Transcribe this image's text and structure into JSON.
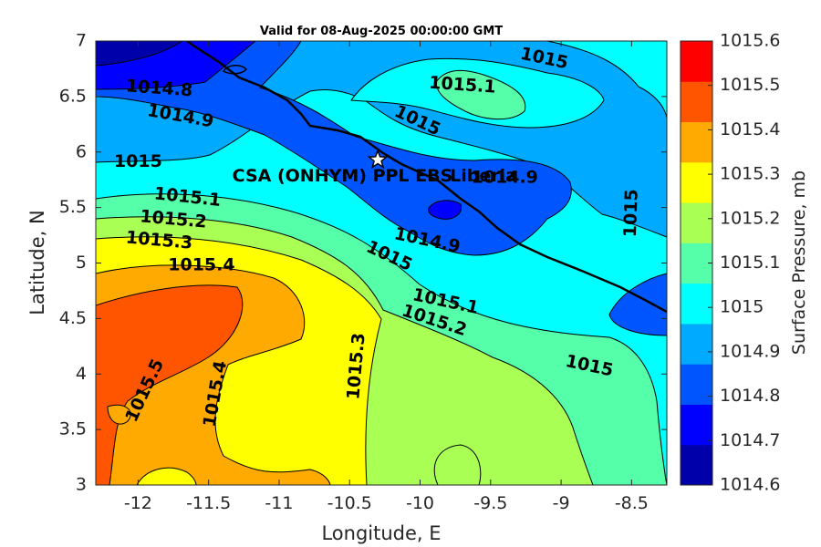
{
  "chart_data": {
    "type": "contour",
    "title": "Valid for 08-Aug-2025 00:00:00 GMT",
    "xlabel": "Longitude, E",
    "ylabel": "Latitude, N",
    "xlim": [
      -12.3,
      -8.25
    ],
    "ylim": [
      3,
      7
    ],
    "xticks": [
      "-12",
      "-11.5",
      "-11",
      "-10.5",
      "-10",
      "-9.5",
      "-9",
      "-8.5"
    ],
    "yticks": [
      "3",
      "3.5",
      "4",
      "4.5",
      "5",
      "5.5",
      "6",
      "6.5",
      "7"
    ],
    "colorbar": {
      "label": "Surface Pressure, mb",
      "ticks": [
        "1014.6",
        "1014.7",
        "1014.8",
        "1014.9",
        "1015",
        "1015.1",
        "1015.2",
        "1015.3",
        "1015.4",
        "1015.5",
        "1015.6"
      ],
      "colors": [
        "#0000aa",
        "#0000ff",
        "#0055ff",
        "#00aaff",
        "#00ffff",
        "#55ffaa",
        "#aaff55",
        "#ffff00",
        "#ffaa00",
        "#ff5500",
        "#ff0000"
      ]
    },
    "contour_labels": [
      {
        "text": "1015",
        "lon": -9.12,
        "lat": 6.84
      },
      {
        "text": "1015.1",
        "lon": -9.7,
        "lat": 6.6
      },
      {
        "text": "1014.8",
        "lon": -11.85,
        "lat": 6.57
      },
      {
        "text": "1014.9",
        "lon": -11.7,
        "lat": 6.32
      },
      {
        "text": "1015",
        "lon": -10.02,
        "lat": 6.28
      },
      {
        "text": "1015",
        "lon": -12.0,
        "lat": 5.91
      },
      {
        "text": "1014.9",
        "lon": -9.4,
        "lat": 5.77
      },
      {
        "text": "1015.1",
        "lon": -11.65,
        "lat": 5.59
      },
      {
        "text": "1015",
        "lon": -8.5,
        "lat": 5.45
      },
      {
        "text": "1015.2",
        "lon": -11.75,
        "lat": 5.39
      },
      {
        "text": "1014.9",
        "lon": -9.95,
        "lat": 5.2
      },
      {
        "text": "1015.3",
        "lon": -11.85,
        "lat": 5.2
      },
      {
        "text": "1015",
        "lon": -10.22,
        "lat": 5.06
      },
      {
        "text": "1015.4",
        "lon": -11.55,
        "lat": 4.98
      },
      {
        "text": "1015.1",
        "lon": -9.82,
        "lat": 4.65
      },
      {
        "text": "1015.2",
        "lon": -9.9,
        "lat": 4.48
      },
      {
        "text": "1015",
        "lon": -8.8,
        "lat": 4.07
      },
      {
        "text": "1015.5",
        "lon": -11.95,
        "lat": 3.85
      },
      {
        "text": "1015.4",
        "lon": -11.45,
        "lat": 3.82
      },
      {
        "text": "1015.3",
        "lon": -10.45,
        "lat": 4.07
      }
    ],
    "annotations": [
      {
        "text": "CSA (ONHYM) PPL EBS",
        "lon": -10.55,
        "lat": 5.78
      },
      {
        "text": "Liberia",
        "lon": -9.55,
        "lat": 5.78
      }
    ],
    "marker": {
      "symbol": "star",
      "lon": -10.3,
      "lat": 5.93
    }
  }
}
